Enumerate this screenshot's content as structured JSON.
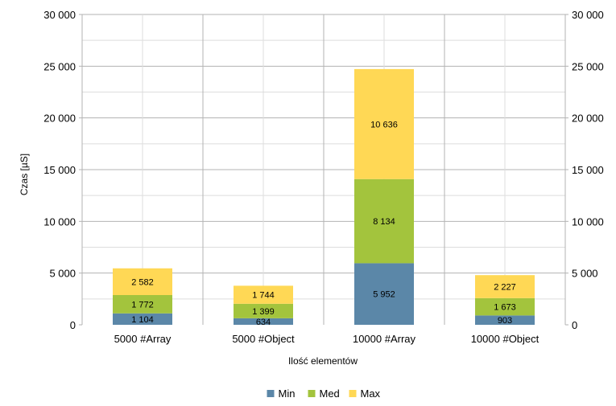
{
  "chart_data": {
    "type": "bar",
    "stacked": true,
    "categories": [
      "5000 #Array",
      "5000 #Object",
      "10000 #Array",
      "10000 #Object"
    ],
    "series": [
      {
        "name": "Min",
        "values": [
          1104,
          634,
          5952,
          903
        ],
        "labels": [
          "1 104",
          "634",
          "5 952",
          "903"
        ],
        "color": "#5b87a8"
      },
      {
        "name": "Med",
        "values": [
          1772,
          1399,
          8134,
          1673
        ],
        "labels": [
          "1 772",
          "1 399",
          "8 134",
          "1 673"
        ],
        "color": "#a3c43d"
      },
      {
        "name": "Max",
        "values": [
          2582,
          1744,
          10636,
          2227
        ],
        "labels": [
          "2 582",
          "1 744",
          "10 636",
          "2 227"
        ],
        "color": "#ffd855"
      }
    ],
    "xlabel": "Ilość elementów",
    "ylabel": "Czas [µS]",
    "ylim": [
      0,
      30000
    ],
    "yticks": [
      0,
      5000,
      10000,
      15000,
      20000,
      25000,
      30000
    ],
    "ytick_labels": [
      "0",
      "5 000",
      "10 000",
      "15 000",
      "20 000",
      "25 000",
      "30 000"
    ],
    "secondary_y_axis": true,
    "grid": true,
    "legend_position": "bottom"
  }
}
